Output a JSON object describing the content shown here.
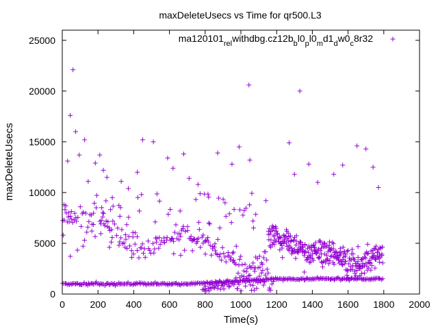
{
  "chart_data": {
    "type": "scatter",
    "title": "maxDeleteUsecs vs Time for qr500.L3",
    "xlabel": "Time(s)",
    "ylabel": "maxDeleteUsecs",
    "xlim": [
      0,
      2000
    ],
    "ylim": [
      0,
      26000
    ],
    "xticks": [
      0,
      200,
      400,
      600,
      800,
      1000,
      1200,
      1400,
      1600,
      1800,
      2000
    ],
    "yticks": [
      0,
      5000,
      10000,
      15000,
      20000,
      25000
    ],
    "xtick_labels": [
      "0",
      "200",
      "400",
      "600",
      "800",
      "1000",
      "1200",
      "1400",
      "1600",
      "1800",
      "2000"
    ],
    "ytick_labels": [
      "0",
      "5000",
      "10000",
      "15000",
      "20000",
      "25000"
    ],
    "grid": false,
    "marker": "+",
    "color": "#9400d3",
    "legend": {
      "position": "top-right",
      "segments": [
        {
          "text": "ma120101",
          "sub": false
        },
        {
          "text": "rel",
          "sub": true
        },
        {
          "text": "withdbg.cz12b",
          "sub": false
        },
        {
          "text": "b",
          "sub": true
        },
        {
          "text": "l0",
          "sub": false
        },
        {
          "text": "p",
          "sub": true
        },
        {
          "text": "l0",
          "sub": false
        },
        {
          "text": "m",
          "sub": true
        },
        {
          "text": "d1",
          "sub": false
        },
        {
          "text": "d",
          "sub": true
        },
        {
          "text": "w0",
          "sub": false
        },
        {
          "text": "c",
          "sub": true
        },
        {
          "text": "8r32",
          "sub": false
        }
      ]
    },
    "series": [
      {
        "name": "ma120101_rel_withdbg.cz12b_b_l0_p_l0_m_d1_d_w0_c_8r32",
        "outliers": [
          [
            5,
            5800
          ],
          [
            10,
            8800
          ],
          [
            20,
            8700
          ],
          [
            30,
            13100
          ],
          [
            45,
            17600
          ],
          [
            60,
            22100
          ],
          [
            75,
            16000
          ],
          [
            95,
            13700
          ],
          [
            125,
            15200
          ],
          [
            145,
            11100
          ],
          [
            185,
            12900
          ],
          [
            210,
            13700
          ],
          [
            230,
            12200
          ],
          [
            250,
            11500
          ],
          [
            280,
            9500
          ],
          [
            330,
            11100
          ],
          [
            370,
            10400
          ],
          [
            420,
            12000
          ],
          [
            450,
            15200
          ],
          [
            510,
            15000
          ],
          [
            590,
            13400
          ],
          [
            620,
            12400
          ],
          [
            680,
            13800
          ],
          [
            710,
            11400
          ],
          [
            760,
            10800
          ],
          [
            820,
            7000
          ],
          [
            870,
            13900
          ],
          [
            950,
            12800
          ],
          [
            990,
            14500
          ],
          [
            1045,
            20600
          ],
          [
            1050,
            13200
          ],
          [
            1140,
            9200
          ],
          [
            1270,
            14900
          ],
          [
            1300,
            11800
          ],
          [
            1330,
            20000
          ],
          [
            1380,
            12800
          ],
          [
            1430,
            11000
          ],
          [
            1520,
            11800
          ],
          [
            1570,
            12700
          ],
          [
            1650,
            14600
          ],
          [
            1700,
            14300
          ],
          [
            1740,
            12500
          ],
          [
            1770,
            10500
          ]
        ]
      }
    ]
  }
}
